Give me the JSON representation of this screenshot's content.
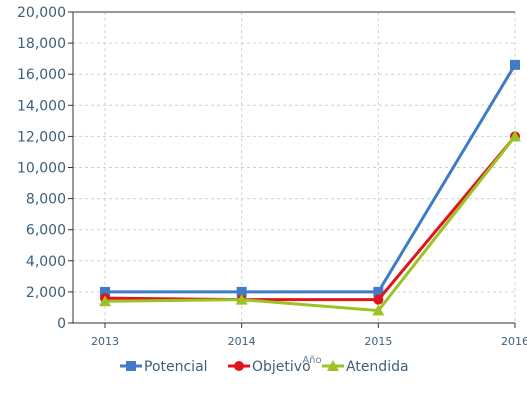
{
  "chart_data": {
    "type": "line",
    "x": [
      "2013",
      "2014",
      "2015",
      "2016"
    ],
    "xlabel": "Año",
    "ylabel": "",
    "ylim": [
      0,
      20000
    ],
    "yticks": [
      0,
      2000,
      4000,
      6000,
      8000,
      10000,
      12000,
      14000,
      16000,
      18000,
      20000
    ],
    "ytick_labels": [
      "0",
      "2,000",
      "4,000",
      "6,000",
      "8,000",
      "10,000",
      "12,000",
      "14,000",
      "16,000",
      "18,000",
      "20,000"
    ],
    "grid": true,
    "legend_position": "bottom",
    "series": [
      {
        "name": "Potencial",
        "values": [
          2000,
          2000,
          2000,
          16600
        ],
        "color": "#3f7cc4",
        "marker": "square"
      },
      {
        "name": "Objetivo",
        "values": [
          1600,
          1500,
          1500,
          12000
        ],
        "color": "#e0141a",
        "marker": "circle"
      },
      {
        "name": "Atendida",
        "values": [
          1400,
          1500,
          800,
          12000
        ],
        "color": "#9ac423",
        "marker": "triangle"
      }
    ]
  }
}
